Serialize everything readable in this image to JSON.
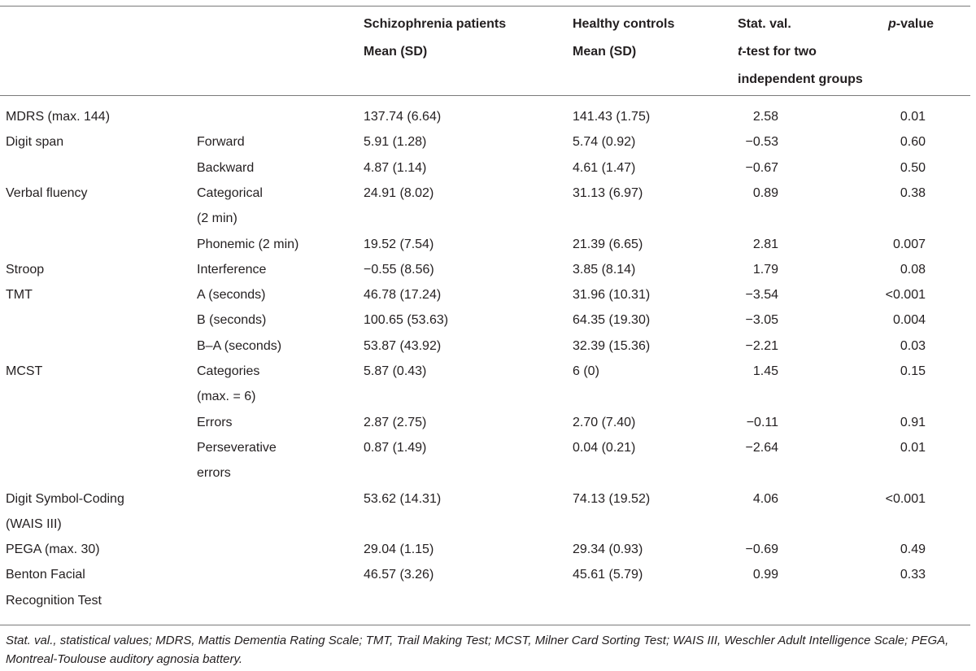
{
  "header": {
    "col_sz_line1": "Schizophrenia patients",
    "col_sz_line2": "Mean (SD)",
    "col_hc_line1": "Healthy controls",
    "col_hc_line2": "Mean (SD)",
    "col_stat_line1": "Stat. val.",
    "col_stat_line2_italic": "t",
    "col_stat_line2_rest": "-test for two",
    "col_stat_line3": "independent groups",
    "col_p_italic": "p",
    "col_p_rest": "-value"
  },
  "rows": [
    {
      "measure": [
        "MDRS (max. 144)"
      ],
      "sub": [],
      "sz": "137.74 (6.64)",
      "hc": "141.43 (1.75)",
      "stat": "2.58",
      "p": "0.01"
    },
    {
      "measure": [
        "Digit span"
      ],
      "sub": [
        "Forward"
      ],
      "sz": "5.91 (1.28)",
      "hc": "5.74 (0.92)",
      "stat": "−0.53",
      "p": "0.60"
    },
    {
      "measure": [],
      "sub": [
        "Backward"
      ],
      "sz": "4.87 (1.14)",
      "hc": "4.61 (1.47)",
      "stat": "−0.67",
      "p": "0.50"
    },
    {
      "measure": [
        "Verbal fluency"
      ],
      "sub": [
        "Categorical",
        "(2 min)"
      ],
      "sz": "24.91 (8.02)",
      "hc": "31.13 (6.97)",
      "stat": "0.89",
      "p": "0.38"
    },
    {
      "measure": [],
      "sub": [
        "Phonemic (2 min)"
      ],
      "sz": "19.52 (7.54)",
      "hc": "21.39 (6.65)",
      "stat": "2.81",
      "p": "0.007"
    },
    {
      "measure": [
        "Stroop"
      ],
      "sub": [
        "Interference"
      ],
      "sz": "−0.55 (8.56)",
      "hc": "3.85 (8.14)",
      "stat": "1.79",
      "p": "0.08"
    },
    {
      "measure": [
        "TMT"
      ],
      "sub": [
        "A (seconds)"
      ],
      "sz": "46.78 (17.24)",
      "hc": "31.96 (10.31)",
      "stat": "−3.54",
      "p": "<0.001"
    },
    {
      "measure": [],
      "sub": [
        "B (seconds)"
      ],
      "sz": "100.65 (53.63)",
      "hc": "64.35 (19.30)",
      "stat": "−3.05",
      "p": "0.004"
    },
    {
      "measure": [],
      "sub": [
        "B–A (seconds)"
      ],
      "sz": "53.87 (43.92)",
      "hc": "32.39 (15.36)",
      "stat": "−2.21",
      "p": "0.03"
    },
    {
      "measure": [
        "MCST"
      ],
      "sub": [
        "Categories",
        "(max. = 6)"
      ],
      "sz": "5.87 (0.43)",
      "hc": "6 (0)",
      "stat": "1.45",
      "p": "0.15"
    },
    {
      "measure": [],
      "sub": [
        "Errors"
      ],
      "sz": "2.87 (2.75)",
      "hc": "2.70 (7.40)",
      "stat": "−0.11",
      "p": "0.91"
    },
    {
      "measure": [],
      "sub": [
        "Perseverative",
        "errors"
      ],
      "sz": "0.87 (1.49)",
      "hc": "0.04 (0.21)",
      "stat": "−2.64",
      "p": "0.01"
    },
    {
      "measure": [
        "Digit Symbol-Coding",
        "(WAIS III)"
      ],
      "sub": [],
      "sz": "53.62 (14.31)",
      "hc": "74.13 (19.52)",
      "stat": "4.06",
      "p": "<0.001"
    },
    {
      "measure": [
        "PEGA (max. 30)"
      ],
      "sub": [],
      "sz": "29.04 (1.15)",
      "hc": "29.34 (0.93)",
      "stat": "−0.69",
      "p": "0.49"
    },
    {
      "measure": [
        "Benton Facial",
        "Recognition Test"
      ],
      "sub": [],
      "sz": "46.57 (3.26)",
      "hc": "45.61 (5.79)",
      "stat": "0.99",
      "p": "0.33"
    }
  ],
  "footnote": "Stat. val., statistical values; MDRS, Mattis Dementia Rating Scale; TMT, Trail Making Test; MCST, Milner Card Sorting Test; WAIS III, Weschler Adult Intelligence Scale; PEGA, Montreal-Toulouse auditory agnosia battery."
}
